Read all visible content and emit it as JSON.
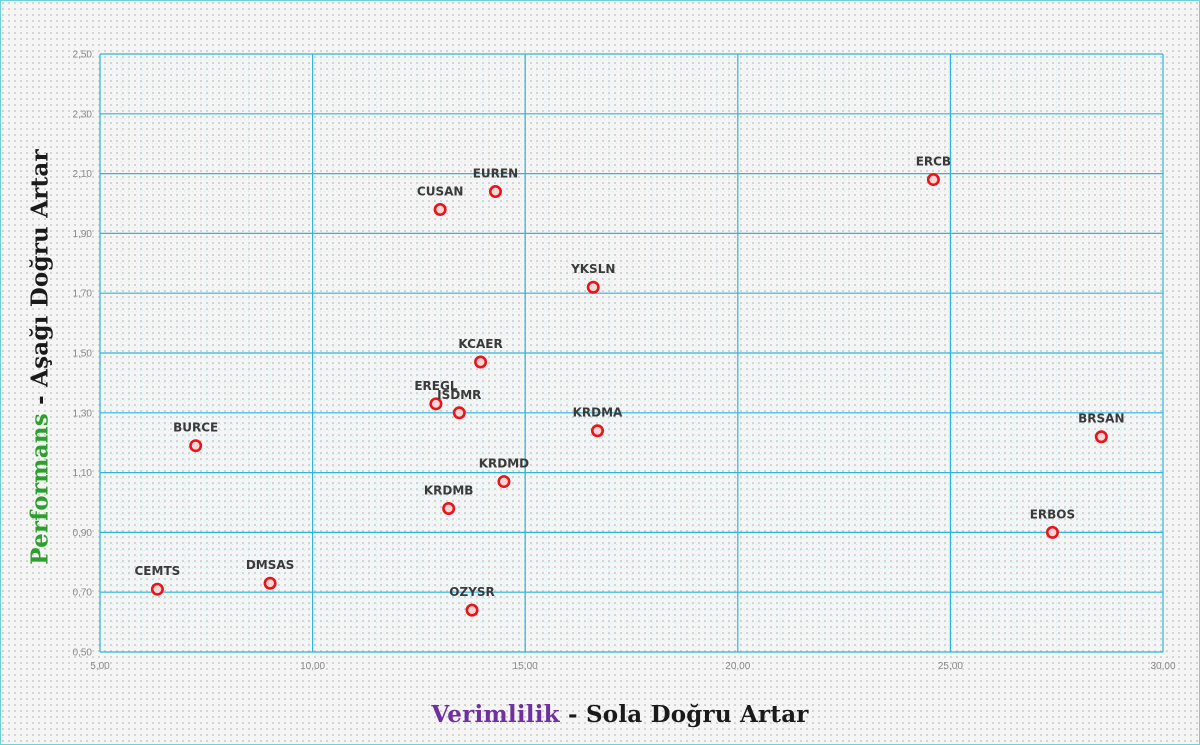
{
  "chart_data": {
    "type": "scatter",
    "x_title": {
      "highlight": "Verimlilik",
      "rest": " - Sola Doğru Artar",
      "highlight_color": "#7030a0"
    },
    "y_title": {
      "highlight": "Performans",
      "rest": " - Aşağı Doğru Artar",
      "highlight_color": "#2ca02c"
    },
    "xlim": [
      5,
      30
    ],
    "ylim": [
      0.5,
      2.5
    ],
    "x_ticks": [
      "5,00",
      "10,00",
      "15,00",
      "20,00",
      "25,00",
      "30,00"
    ],
    "y_ticks": [
      "0,50",
      "0,70",
      "0,90",
      "1,10",
      "1,30",
      "1,50",
      "1,70",
      "1,90",
      "2,10",
      "2,30",
      "2,50"
    ],
    "grid": {
      "major_x_step": 5,
      "major_y_step": 0.2,
      "color": "#2cb5dd"
    },
    "point_color": "#e8141a",
    "points": [
      {
        "label": "ERCB",
        "x": 24.6,
        "y": 2.08
      },
      {
        "label": "EUREN",
        "x": 14.3,
        "y": 2.04
      },
      {
        "label": "CUSAN",
        "x": 13.0,
        "y": 1.98
      },
      {
        "label": "YKSLN",
        "x": 16.6,
        "y": 1.72
      },
      {
        "label": "KCAER",
        "x": 13.95,
        "y": 1.47
      },
      {
        "label": "EREGL",
        "x": 12.9,
        "y": 1.33
      },
      {
        "label": "ISDMR",
        "x": 13.45,
        "y": 1.3
      },
      {
        "label": "KRDMA",
        "x": 16.7,
        "y": 1.24
      },
      {
        "label": "BRSAN",
        "x": 28.55,
        "y": 1.22
      },
      {
        "label": "BURCE",
        "x": 7.25,
        "y": 1.19
      },
      {
        "label": "KRDMD",
        "x": 14.5,
        "y": 1.07
      },
      {
        "label": "KRDMB",
        "x": 13.2,
        "y": 0.98
      },
      {
        "label": "ERBOS",
        "x": 27.4,
        "y": 0.9
      },
      {
        "label": "DMSAS",
        "x": 9.0,
        "y": 0.73
      },
      {
        "label": "CEMTS",
        "x": 6.35,
        "y": 0.71
      },
      {
        "label": "OZYSR",
        "x": 13.75,
        "y": 0.64
      }
    ]
  }
}
